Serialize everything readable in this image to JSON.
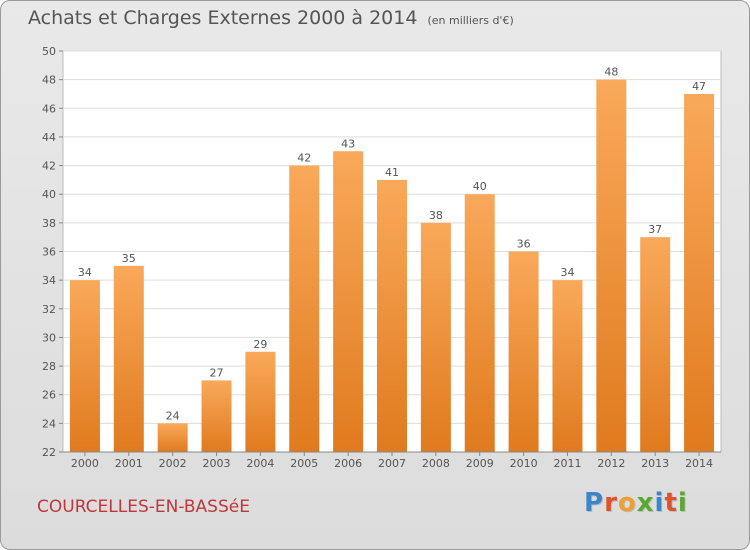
{
  "header": {
    "title": "Achats et Charges Externes 2000 à 2014",
    "unit": "(en milliers d'€)"
  },
  "footer": {
    "commune": "COURCELLES-EN-BASSéE",
    "logo_text": "Proxiti",
    "logo_letter_colors": [
      "#3a86c8",
      "#e0522a",
      "#f0a030",
      "#5aa832",
      "#3a86c8",
      "#e0522a",
      "#5aa832"
    ]
  },
  "colors": {
    "bar_top": "#f9a95a",
    "bar_bottom": "#e07a1e",
    "background": "#e4e4e4",
    "plot_background": "#ffffff",
    "grid": "#dddddd",
    "text": "#555555",
    "commune": "#c0373a"
  },
  "chart_data": {
    "type": "bar",
    "title": "Achats et Charges Externes 2000 à 2014",
    "subtitle": "(en milliers d'€)",
    "xlabel": "",
    "ylabel": "",
    "categories": [
      "2000",
      "2001",
      "2002",
      "2003",
      "2004",
      "2005",
      "2006",
      "2007",
      "2008",
      "2009",
      "2010",
      "2011",
      "2012",
      "2013",
      "2014"
    ],
    "values": [
      34,
      35,
      24,
      27,
      29,
      42,
      43,
      41,
      38,
      40,
      36,
      34,
      48,
      37,
      47
    ],
    "ylim": [
      22,
      50
    ],
    "yticks": [
      22,
      24,
      26,
      28,
      30,
      32,
      34,
      36,
      38,
      40,
      42,
      44,
      46,
      48,
      50
    ],
    "grid": true,
    "data_labels": true
  }
}
